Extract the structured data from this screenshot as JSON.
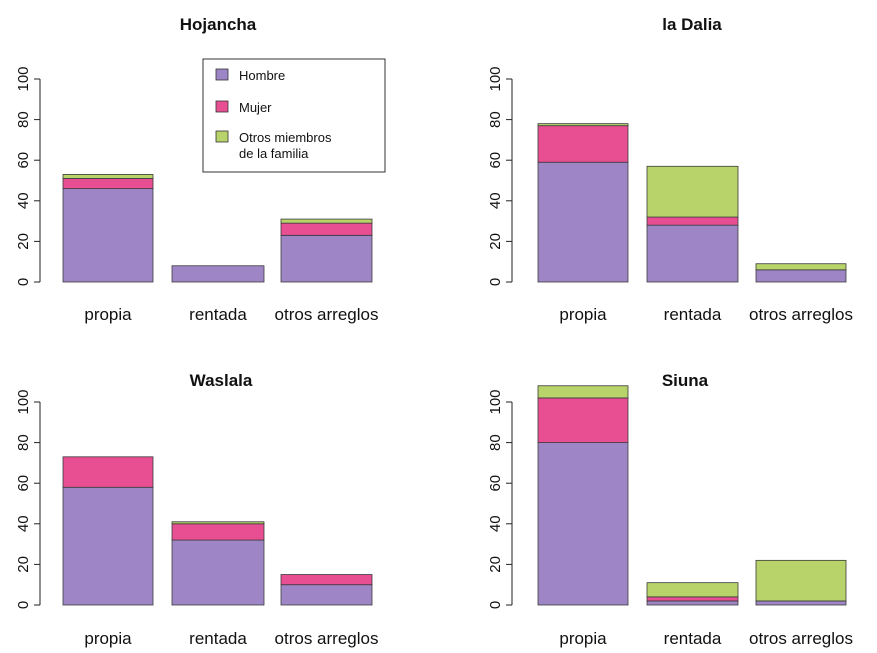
{
  "colors": {
    "hombre": "#9e86c6",
    "mujer": "#e84f93",
    "otros": "#b8d36a",
    "edge": "#3a3a3a"
  },
  "legend": {
    "items": [
      {
        "key": "hombre",
        "label": "Hombre"
      },
      {
        "key": "mujer",
        "label": "Mujer"
      },
      {
        "key": "otros",
        "label": "Otros miembros",
        "label2": "de la familia"
      }
    ]
  },
  "chart_data": [
    {
      "type": "bar",
      "title": "Hojancha",
      "categories": [
        "propia",
        "rentada",
        "otros arreglos"
      ],
      "yticks": [
        0,
        20,
        40,
        60,
        80,
        100
      ],
      "ylim": [
        0,
        120
      ],
      "series": [
        {
          "name": "Hombre",
          "values": [
            46,
            8,
            23
          ]
        },
        {
          "name": "Mujer",
          "values": [
            5,
            0,
            6
          ]
        },
        {
          "name": "Otros miembros de la familia",
          "values": [
            2,
            0,
            2
          ]
        }
      ]
    },
    {
      "type": "bar",
      "title": "la Dalia",
      "categories": [
        "propia",
        "rentada",
        "otros arreglos"
      ],
      "yticks": [
        0,
        20,
        40,
        60,
        80,
        100
      ],
      "ylim": [
        0,
        120
      ],
      "series": [
        {
          "name": "Hombre",
          "values": [
            59,
            28,
            6
          ]
        },
        {
          "name": "Mujer",
          "values": [
            18,
            4,
            0
          ]
        },
        {
          "name": "Otros miembros de la familia",
          "values": [
            1,
            25,
            3
          ]
        }
      ]
    },
    {
      "type": "bar",
      "title": "Waslala",
      "categories": [
        "propia",
        "rentada",
        "otros arreglos"
      ],
      "yticks": [
        0,
        20,
        40,
        60,
        80,
        100
      ],
      "ylim": [
        0,
        120
      ],
      "series": [
        {
          "name": "Hombre",
          "values": [
            58,
            32,
            10
          ]
        },
        {
          "name": "Mujer",
          "values": [
            15,
            8,
            5
          ]
        },
        {
          "name": "Otros miembros de la familia",
          "values": [
            0,
            1,
            0
          ]
        }
      ]
    },
    {
      "type": "bar",
      "title": "Siuna",
      "categories": [
        "propia",
        "rentada",
        "otros arreglos"
      ],
      "yticks": [
        0,
        20,
        40,
        60,
        80,
        100
      ],
      "ylim": [
        0,
        120
      ],
      "series": [
        {
          "name": "Hombre",
          "values": [
            80,
            2,
            2
          ]
        },
        {
          "name": "Mujer",
          "values": [
            22,
            2,
            0
          ]
        },
        {
          "name": "Otros miembros de la familia",
          "values": [
            6,
            7,
            20
          ]
        }
      ]
    }
  ]
}
